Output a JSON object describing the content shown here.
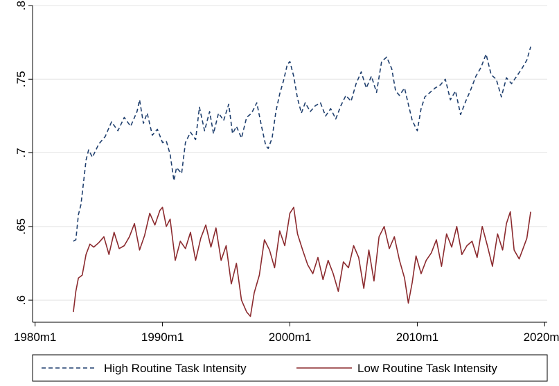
{
  "chart_data": {
    "type": "line",
    "title": "",
    "xlabel": "",
    "ylabel": "",
    "xlim": [
      1979.8,
      2020.2
    ],
    "ylim": [
      0.585,
      0.8
    ],
    "x_ticks": [
      1980,
      1990,
      2000,
      2010,
      2020
    ],
    "x_tick_labels": [
      "1980m1",
      "1990m1",
      "2000m1",
      "2010m1",
      "2020m1"
    ],
    "y_ticks": [
      0.6,
      0.65,
      0.7,
      0.75,
      0.8
    ],
    "y_tick_labels": [
      ".6",
      ".65",
      ".7",
      ".75",
      ".8"
    ],
    "grid": true,
    "legend_position": "bottom",
    "series": [
      {
        "name": "High Routine Task Intensity",
        "color": "#1f3f6e",
        "dash": "dashed",
        "x": [
          1983.0,
          1983.2,
          1983.4,
          1983.6,
          1983.8,
          1984.0,
          1984.2,
          1984.5,
          1985.0,
          1985.5,
          1986.0,
          1986.5,
          1987.0,
          1987.5,
          1988.0,
          1988.2,
          1988.5,
          1988.8,
          1989.2,
          1989.6,
          1990.0,
          1990.3,
          1990.6,
          1990.9,
          1991.1,
          1991.5,
          1991.8,
          1992.2,
          1992.6,
          1992.9,
          1993.3,
          1993.7,
          1994.0,
          1994.4,
          1994.8,
          1995.2,
          1995.5,
          1995.8,
          1996.2,
          1996.6,
          1997.0,
          1997.4,
          1997.8,
          1998.1,
          1998.3,
          1998.6,
          1998.9,
          1999.2,
          1999.5,
          1999.8,
          2000.0,
          2000.3,
          2000.6,
          2000.9,
          2001.2,
          2001.6,
          2002.0,
          2002.4,
          2002.8,
          2003.2,
          2003.6,
          2004.0,
          2004.4,
          2004.8,
          2005.2,
          2005.6,
          2006.0,
          2006.4,
          2006.8,
          2007.2,
          2007.6,
          2008.0,
          2008.3,
          2008.6,
          2009.0,
          2009.3,
          2009.6,
          2010.0,
          2010.3,
          2010.6,
          2011.0,
          2011.4,
          2011.8,
          2012.2,
          2012.6,
          2013.0,
          2013.4,
          2013.8,
          2014.2,
          2014.6,
          2015.0,
          2015.4,
          2015.8,
          2016.2,
          2016.6,
          2017.0,
          2017.4,
          2017.8,
          2018.2,
          2018.6,
          2018.9
        ],
        "values": [
          0.64,
          0.641,
          0.658,
          0.665,
          0.68,
          0.695,
          0.702,
          0.697,
          0.706,
          0.711,
          0.721,
          0.715,
          0.724,
          0.718,
          0.728,
          0.736,
          0.72,
          0.727,
          0.712,
          0.716,
          0.707,
          0.708,
          0.699,
          0.681,
          0.69,
          0.686,
          0.707,
          0.714,
          0.709,
          0.731,
          0.715,
          0.728,
          0.713,
          0.727,
          0.722,
          0.733,
          0.713,
          0.718,
          0.71,
          0.724,
          0.727,
          0.734,
          0.717,
          0.705,
          0.703,
          0.71,
          0.728,
          0.74,
          0.749,
          0.76,
          0.762,
          0.752,
          0.737,
          0.727,
          0.734,
          0.728,
          0.732,
          0.734,
          0.725,
          0.73,
          0.723,
          0.732,
          0.739,
          0.735,
          0.747,
          0.755,
          0.744,
          0.752,
          0.741,
          0.762,
          0.765,
          0.757,
          0.742,
          0.739,
          0.744,
          0.733,
          0.722,
          0.715,
          0.73,
          0.738,
          0.741,
          0.744,
          0.746,
          0.75,
          0.736,
          0.742,
          0.726,
          0.735,
          0.743,
          0.752,
          0.758,
          0.767,
          0.753,
          0.75,
          0.738,
          0.751,
          0.747,
          0.752,
          0.757,
          0.763,
          0.772
        ]
      },
      {
        "name": "Low Routine Task Intensity",
        "color": "#8b2a2e",
        "dash": "solid",
        "x": [
          1983.0,
          1983.2,
          1983.4,
          1983.7,
          1984.0,
          1984.3,
          1984.6,
          1985.0,
          1985.4,
          1985.8,
          1986.2,
          1986.6,
          1987.0,
          1987.4,
          1987.8,
          1988.2,
          1988.6,
          1989.0,
          1989.4,
          1989.8,
          1990.0,
          1990.3,
          1990.6,
          1991.0,
          1991.4,
          1991.8,
          1992.2,
          1992.6,
          1993.0,
          1993.4,
          1993.8,
          1994.2,
          1994.6,
          1995.0,
          1995.4,
          1995.8,
          1996.2,
          1996.6,
          1996.9,
          1997.2,
          1997.6,
          1998.0,
          1998.4,
          1998.8,
          1999.2,
          1999.6,
          2000.0,
          2000.3,
          2000.6,
          2001.0,
          2001.4,
          2001.8,
          2002.2,
          2002.6,
          2003.0,
          2003.4,
          2003.8,
          2004.2,
          2004.6,
          2005.0,
          2005.4,
          2005.8,
          2006.2,
          2006.6,
          2007.0,
          2007.4,
          2007.8,
          2008.2,
          2008.6,
          2009.0,
          2009.3,
          2009.6,
          2009.9,
          2010.3,
          2010.7,
          2011.1,
          2011.5,
          2011.9,
          2012.3,
          2012.7,
          2013.1,
          2013.5,
          2013.9,
          2014.3,
          2014.7,
          2015.1,
          2015.5,
          2015.9,
          2016.3,
          2016.7,
          2017.0,
          2017.3,
          2017.6,
          2018.0,
          2018.3,
          2018.6,
          2018.9
        ],
        "values": [
          0.592,
          0.606,
          0.615,
          0.617,
          0.631,
          0.638,
          0.636,
          0.639,
          0.643,
          0.631,
          0.646,
          0.635,
          0.637,
          0.643,
          0.652,
          0.634,
          0.644,
          0.659,
          0.651,
          0.661,
          0.663,
          0.65,
          0.655,
          0.627,
          0.64,
          0.635,
          0.646,
          0.627,
          0.642,
          0.651,
          0.636,
          0.649,
          0.627,
          0.637,
          0.611,
          0.625,
          0.6,
          0.592,
          0.589,
          0.605,
          0.617,
          0.641,
          0.634,
          0.622,
          0.647,
          0.637,
          0.659,
          0.663,
          0.645,
          0.634,
          0.624,
          0.618,
          0.629,
          0.614,
          0.627,
          0.618,
          0.606,
          0.626,
          0.622,
          0.637,
          0.629,
          0.608,
          0.634,
          0.613,
          0.643,
          0.65,
          0.635,
          0.643,
          0.627,
          0.615,
          0.598,
          0.612,
          0.63,
          0.618,
          0.627,
          0.632,
          0.641,
          0.623,
          0.645,
          0.636,
          0.65,
          0.631,
          0.637,
          0.64,
          0.629,
          0.65,
          0.637,
          0.623,
          0.645,
          0.634,
          0.652,
          0.66,
          0.634,
          0.628,
          0.635,
          0.642,
          0.66
        ]
      }
    ]
  }
}
